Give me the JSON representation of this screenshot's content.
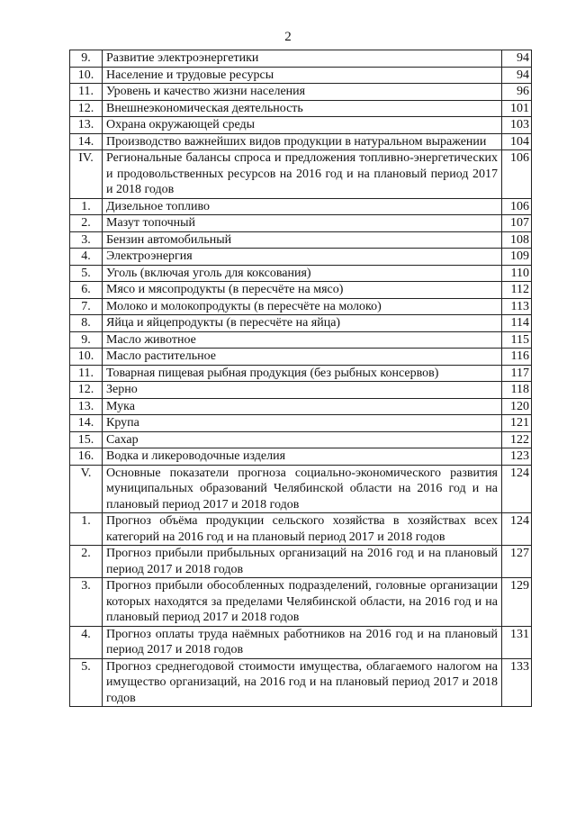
{
  "page_number": "2",
  "rows": [
    {
      "num": "9.",
      "title": "Развитие электроэнергетики",
      "page": "94"
    },
    {
      "num": "10.",
      "title": "Население и трудовые ресурсы",
      "page": "94"
    },
    {
      "num": "11.",
      "title": "Уровень и качество жизни населения",
      "page": "96"
    },
    {
      "num": "12.",
      "title": "Внешнеэкономическая деятельность",
      "page": "101"
    },
    {
      "num": "13.",
      "title": "Охрана окружающей среды",
      "page": "103"
    },
    {
      "num": "14.",
      "title": "Производство важнейших видов продукции в натуральном выражении",
      "page": "104"
    },
    {
      "num": "IV.",
      "title": "Региональные балансы спроса и предложения топливно-энергетических и продовольственных ресурсов на 2016 год и на плановый период 2017 и 2018 годов",
      "page": "106"
    },
    {
      "num": "1.",
      "title": "Дизельное топливо",
      "page": "106"
    },
    {
      "num": "2.",
      "title": "Мазут топочный",
      "page": "107"
    },
    {
      "num": "3.",
      "title": "Бензин автомобильный",
      "page": "108"
    },
    {
      "num": "4.",
      "title": "Электроэнергия",
      "page": "109"
    },
    {
      "num": "5.",
      "title": "Уголь (включая уголь для коксования)",
      "page": "110"
    },
    {
      "num": "6.",
      "title": "Мясо и мясопродукты (в пересчёте на мясо)",
      "page": "112"
    },
    {
      "num": "7.",
      "title": "Молоко и молокопродукты (в пересчёте на молоко)",
      "page": "113"
    },
    {
      "num": "8.",
      "title": "Яйца и яйцепродукты (в пересчёте на яйца)",
      "page": "114"
    },
    {
      "num": "9.",
      "title": "Масло животное",
      "page": "115"
    },
    {
      "num": "10.",
      "title": "Масло растительное",
      "page": "116"
    },
    {
      "num": "11.",
      "title": "Товарная пищевая рыбная продукция (без рыбных консервов)",
      "page": "117"
    },
    {
      "num": "12.",
      "title": "Зерно",
      "page": "118"
    },
    {
      "num": "13.",
      "title": "Мука",
      "page": "120"
    },
    {
      "num": "14.",
      "title": "Крупа",
      "page": "121"
    },
    {
      "num": "15.",
      "title": "Сахар",
      "page": "122"
    },
    {
      "num": "16.",
      "title": "Водка и ликероводочные изделия",
      "page": "123"
    },
    {
      "num": "V.",
      "title": "Основные показатели прогноза социально-экономического развития муниципальных образований Челябинской области на 2016 год и на плановый период 2017 и 2018 годов",
      "page": "124"
    },
    {
      "num": "1.",
      "title": "Прогноз объёма продукции сельского хозяйства в хозяйствах всех категорий на 2016 год и на плановый период 2017 и 2018 годов",
      "page": "124"
    },
    {
      "num": "2.",
      "title": "Прогноз прибыли прибыльных организаций на 2016 год и на плановый период 2017 и 2018 годов",
      "page": "127"
    },
    {
      "num": "3.",
      "title": "Прогноз прибыли обособленных подразделений, головные организации которых находятся за пределами Челябинской области, на 2016 год и на плановый период 2017 и 2018 годов",
      "page": "129"
    },
    {
      "num": "4.",
      "title": "Прогноз оплаты труда наёмных работников на 2016 год и на плановый период 2017 и 2018 годов",
      "page": "131"
    },
    {
      "num": "5.",
      "title": "Прогноз среднегодовой стоимости имущества, облагаемого налогом на имущество организаций, на 2016 год и на плановый период 2017 и 2018 годов",
      "page": "133"
    }
  ]
}
